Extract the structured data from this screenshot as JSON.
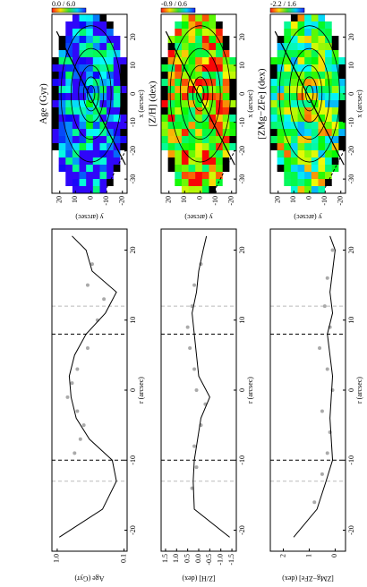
{
  "chart_data": [
    {
      "type": "map",
      "title": "Age (Gyr)",
      "xlabel": "x (arcsec)",
      "ylabel": "y (arcsec)",
      "xlim": [
        -35,
        28
      ],
      "ylim": [
        -23,
        25
      ],
      "xticks": [
        -30,
        -20,
        -10,
        0,
        10,
        20
      ],
      "yticks": [
        -20,
        -10,
        0,
        10,
        20
      ],
      "colorbar_label": "0.0 / 6.0"
    },
    {
      "type": "profile",
      "ylabel": "Age (Gyr)",
      "xlabel": "r (arcsec)",
      "log_y": true,
      "xlim": [
        -23,
        23
      ],
      "ylim": [
        0.09,
        1.2
      ],
      "xticks": [
        -20,
        -10,
        0,
        10,
        20
      ],
      "yticks": [
        0.1,
        {
          "value": 1,
          "label": "1.0"
        }
      ],
      "vlines": [
        -10,
        8
      ],
      "vlines_color": "#000000",
      "vlines2": [
        -13,
        12
      ],
      "vlines2_color": "#bbbbbb",
      "series": [
        {
          "color": "#000000",
          "x": [
            -21,
            -17,
            -13,
            -10,
            -7,
            -4,
            -1,
            2,
            5,
            8,
            11,
            14,
            17,
            20,
            22
          ],
          "values": [
            0.93,
            0.21,
            0.13,
            0.15,
            0.33,
            0.52,
            0.62,
            0.66,
            0.55,
            0.37,
            0.19,
            0.13,
            0.3,
            0.37,
            0.6
          ]
        },
        {
          "color": "#aaaaaa",
          "x": [
            -9,
            -7,
            -5,
            -3,
            -1,
            1,
            3,
            6,
            10,
            13,
            15,
            18
          ],
          "values": [
            0.55,
            0.45,
            0.4,
            0.5,
            0.7,
            0.6,
            0.5,
            0.35,
            0.25,
            0.2,
            0.35,
            0.3
          ]
        }
      ]
    },
    {
      "type": "map",
      "title": "[Z/H] (dex)",
      "xlabel": "x (arcsec)",
      "ylabel": "y (arcsec)",
      "xlim": [
        -35,
        28
      ],
      "ylim": [
        -23,
        25
      ],
      "xticks": [
        -30,
        -20,
        -10,
        0,
        10,
        20
      ],
      "yticks": [
        -20,
        -10,
        0,
        10,
        20
      ],
      "colorbar_label": "-0.9 / 0.6"
    },
    {
      "type": "profile",
      "ylabel": "[Z/H] (dex)",
      "xlabel": "r (arcsec)",
      "log_y": false,
      "xlim": [
        -23,
        23
      ],
      "ylim": [
        -1.7,
        1.7
      ],
      "xticks": [
        -20,
        -10,
        0,
        10,
        20
      ],
      "yticks": [
        -1.5,
        {
          "value": -1,
          "label": "-1.0"
        },
        -0.5,
        {
          "value": 0,
          "label": "0.0"
        },
        0.5,
        {
          "value": 1,
          "label": "1.0"
        },
        1.5
      ],
      "vlines": [
        -10,
        8
      ],
      "vlines_color": "#000000",
      "vlines2": [
        -13,
        12
      ],
      "vlines2_color": "#bbbbbb",
      "series": [
        {
          "color": "#000000",
          "x": [
            -21,
            -17,
            -13,
            -10,
            -7,
            -4,
            -1,
            2,
            5,
            8,
            11,
            14,
            17,
            20,
            22
          ],
          "values": [
            -1.4,
            0.2,
            0.25,
            0.2,
            0.05,
            -0.1,
            -0.5,
            0.0,
            0.1,
            0.2,
            0.3,
            0.1,
            0.0,
            -0.2,
            -0.35
          ]
        },
        {
          "color": "#aaaaaa",
          "x": [
            -14,
            -11,
            -8,
            -5,
            -2,
            0,
            3,
            6,
            9,
            12,
            15,
            18
          ],
          "values": [
            0.3,
            0.1,
            0.2,
            -0.1,
            -0.3,
            0.1,
            0.2,
            0.4,
            0.5,
            0.3,
            0.2,
            -0.1
          ]
        }
      ]
    },
    {
      "type": "map",
      "title": "[ZMg−ZFe] (dex)",
      "xlabel": "x (arcsec)",
      "ylabel": "y (arcsec)",
      "xlim": [
        -35,
        28
      ],
      "ylim": [
        -23,
        25
      ],
      "xticks": [
        -30,
        -20,
        -10,
        0,
        10,
        20
      ],
      "yticks": [
        -20,
        -10,
        0,
        10,
        20
      ],
      "colorbar_label": "-2.2 / 1.6"
    },
    {
      "type": "profile",
      "ylabel": "[ZMg−ZFe] (dex)",
      "xlabel": "r (arcsec)",
      "log_y": false,
      "xlim": [
        -23,
        23
      ],
      "ylim": [
        -0.4,
        2.5
      ],
      "xticks": [
        -20,
        -10,
        0,
        10,
        20
      ],
      "yticks": [
        0,
        1,
        2
      ],
      "vlines": [
        -10,
        8
      ],
      "vlines_color": "#000000",
      "vlines2": [
        -13,
        12
      ],
      "vlines2_color": "#bbbbbb",
      "series": [
        {
          "color": "#000000",
          "x": [
            -21,
            -17,
            -13,
            -10,
            -7,
            -4,
            -1,
            2,
            5,
            8,
            11,
            14,
            17,
            20,
            22
          ],
          "values": [
            1.6,
            0.7,
            0.35,
            0.1,
            0.15,
            0.2,
            0.15,
            0.1,
            0.2,
            0.3,
            0.1,
            0.2,
            0.1,
            0.0,
            0.2
          ]
        },
        {
          "color": "#aaaaaa",
          "x": [
            -16,
            -12,
            -9,
            -6,
            -3,
            0,
            3,
            6,
            9,
            12,
            16,
            20
          ],
          "values": [
            0.8,
            0.5,
            0.3,
            0.2,
            0.5,
            0.1,
            0.3,
            0.6,
            0.2,
            0.4,
            0.3,
            0.1
          ]
        }
      ]
    }
  ]
}
